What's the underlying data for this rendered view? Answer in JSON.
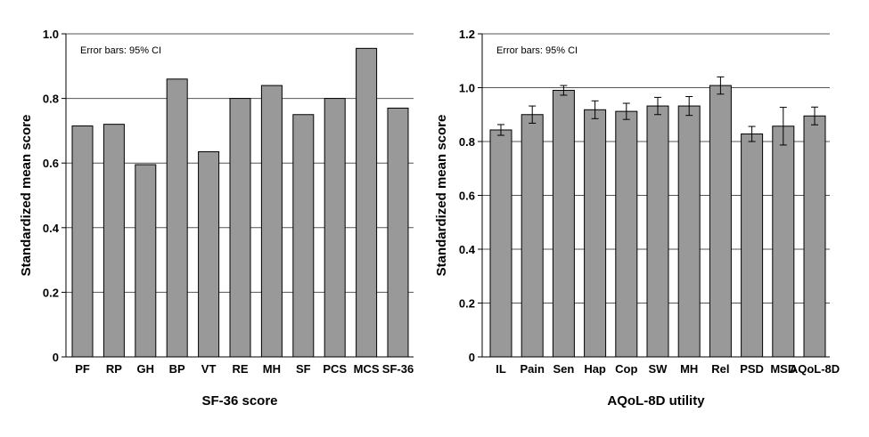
{
  "chart_data": [
    {
      "type": "bar",
      "note": "Error bars: 95% CI",
      "xlabel": "SF-36 score",
      "ylabel": "Standardized mean score",
      "ylim": [
        0,
        1.0
      ],
      "yticks": [
        "0",
        "0.2",
        "0.4",
        "0.6",
        "0.8",
        "1.0"
      ],
      "grid": true,
      "categories": [
        "PF",
        "RP",
        "GH",
        "BP",
        "VT",
        "RE",
        "MH",
        "SF",
        "PCS",
        "MCS",
        "SF-36"
      ],
      "values": [
        0.715,
        0.72,
        0.595,
        0.86,
        0.635,
        0.8,
        0.84,
        0.75,
        0.8,
        0.955,
        0.77
      ],
      "bar_color": "#999999"
    },
    {
      "type": "bar",
      "note": "Error bars: 95% CI",
      "xlabel": "AQoL-8D utility",
      "ylabel": "Standardized mean score",
      "ylim": [
        0,
        1.2
      ],
      "yticks": [
        "0",
        "0.2",
        "0.4",
        "0.6",
        "0.8",
        "1.0",
        "1.2"
      ],
      "grid": true,
      "categories": [
        "IL",
        "Pain",
        "Sen",
        "Hap",
        "Cop",
        "SW",
        "MH",
        "Rel",
        "PSD",
        "MSD",
        "AQoL-8D"
      ],
      "values": [
        0.843,
        0.9,
        0.99,
        0.918,
        0.912,
        0.932,
        0.932,
        1.008,
        0.828,
        0.857,
        0.895
      ],
      "error_low": [
        0.823,
        0.868,
        0.972,
        0.885,
        0.882,
        0.9,
        0.897,
        0.976,
        0.8,
        0.787,
        0.862
      ],
      "error_high": [
        0.863,
        0.932,
        1.008,
        0.951,
        0.942,
        0.964,
        0.967,
        1.04,
        0.856,
        0.927,
        0.928
      ],
      "bar_color": "#999999"
    }
  ]
}
